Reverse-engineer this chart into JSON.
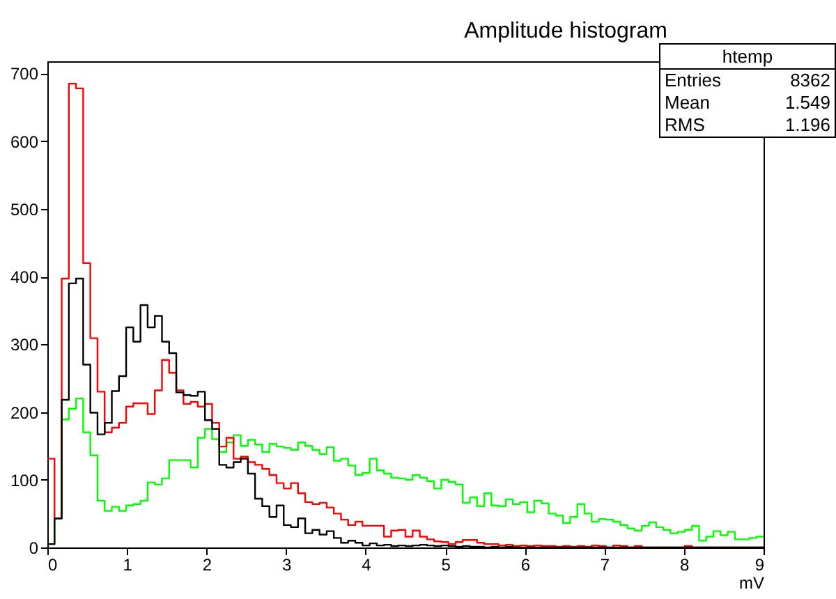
{
  "chart_data": {
    "type": "histogram",
    "title": "Amplitude histogram",
    "xlabel": "mV",
    "annotations": [
      "htemp",
      "Entries",
      "8362",
      "Mean",
      "1.549",
      "RMS",
      "1.196"
    ],
    "bins": [
      0,
      0.09,
      0.18,
      0.27,
      0.36,
      0.45,
      0.54,
      0.63,
      0.72,
      0.81,
      0.9,
      0.99,
      1.08,
      1.17,
      1.26,
      1.35,
      1.44,
      1.53,
      1.62,
      1.71,
      1.8,
      1.89,
      1.98,
      2.07,
      2.16,
      2.25,
      2.34,
      2.43,
      2.52,
      2.61,
      2.7,
      2.79,
      2.88,
      2.97,
      3.06,
      3.15,
      3.24,
      3.33,
      3.42,
      3.51,
      3.6,
      3.69,
      3.78,
      3.87,
      3.96,
      4.05,
      4.14,
      4.23,
      4.32,
      4.41,
      4.5,
      4.59,
      4.68,
      4.77,
      4.86,
      4.95,
      5.04,
      5.13,
      5.22,
      5.31,
      5.4,
      5.49,
      5.58,
      5.67,
      5.76,
      5.85,
      5.94,
      6.03,
      6.12,
      6.21,
      6.3,
      6.39,
      6.48,
      6.57,
      6.66,
      6.75,
      6.84,
      6.93,
      7.02,
      7.11,
      7.2,
      7.29,
      7.38,
      7.47,
      7.56,
      7.65,
      7.74,
      7.83,
      7.92,
      8.01,
      8.1,
      8.19,
      8.28,
      8.37,
      8.46,
      8.55,
      8.64,
      8.73,
      8.82,
      8.91,
      9
    ],
    "series": [
      {
        "color": "#00ff00",
        "values": [
          5,
          43,
          189,
          205,
          220,
          170,
          136,
          69,
          54,
          60,
          54,
          62,
          64,
          69,
          96,
          93,
          102,
          129,
          129,
          129,
          118,
          162,
          175,
          160,
          141,
          155,
          166,
          150,
          159,
          152,
          141,
          153,
          149,
          147,
          144,
          155,
          150,
          144,
          138,
          148,
          128,
          131,
          121,
          107,
          110,
          131,
          114,
          109,
          103,
          102,
          100,
          107,
          103,
          98,
          87,
          100,
          97,
          93,
          66,
          74,
          61,
          80,
          62,
          61,
          71,
          64,
          67,
          52,
          69,
          65,
          50,
          47,
          36,
          45,
          64,
          50,
          38,
          42,
          41,
          38,
          33,
          28,
          25,
          32,
          37,
          30,
          26,
          21,
          23,
          26,
          32,
          10,
          16,
          24,
          18,
          23,
          12,
          12,
          14,
          16
        ]
      },
      {
        "color": "#ff0000",
        "values": [
          131,
          43,
          397,
          685,
          678,
          420,
          309,
          230,
          170,
          177,
          184,
          208,
          213,
          213,
          197,
          232,
          277,
          258,
          232,
          212,
          215,
          208,
          212,
          184,
          149,
          162,
          131,
          134,
          126,
          122,
          116,
          107,
          95,
          87,
          95,
          80,
          67,
          64,
          66,
          59,
          50,
          41,
          33,
          38,
          32,
          32,
          32,
          16,
          25,
          26,
          16,
          25,
          16,
          12,
          9,
          8,
          5,
          8,
          11,
          11,
          7,
          5,
          5,
          3,
          4,
          2,
          3,
          2,
          3,
          2,
          2,
          1,
          2,
          1,
          2,
          1,
          3,
          2,
          0,
          3,
          2,
          0,
          2,
          0,
          0,
          0,
          0,
          0,
          0,
          2,
          0,
          0,
          0,
          0,
          0,
          0,
          0,
          0,
          0,
          0
        ]
      },
      {
        "color": "#000000",
        "values": [
          5,
          43,
          218,
          390,
          397,
          270,
          199,
          167,
          184,
          231,
          253,
          325,
          304,
          358,
          325,
          342,
          304,
          287,
          229,
          225,
          224,
          230,
          188,
          175,
          122,
          118,
          126,
          131,
          109,
          72,
          61,
          45,
          62,
          33,
          30,
          43,
          21,
          26,
          19,
          24,
          14,
          7,
          10,
          7,
          3,
          6,
          3,
          4,
          2,
          3,
          2,
          3,
          4,
          3,
          2,
          3,
          2,
          1,
          2,
          1,
          1,
          0,
          1,
          0,
          1,
          0,
          0,
          0,
          0,
          0,
          0,
          0,
          0,
          0,
          0,
          0,
          0,
          0,
          0,
          0,
          0,
          0,
          0,
          0,
          0,
          0,
          0,
          0,
          0,
          0,
          0,
          0,
          0,
          0,
          0,
          0,
          0,
          0,
          0,
          0
        ]
      }
    ],
    "xlim": [
      0,
      9
    ],
    "ylim": [
      0,
      718
    ],
    "xticks": [
      0,
      1,
      2,
      3,
      4,
      5,
      6,
      7,
      8,
      9
    ],
    "yticks": [
      0,
      100,
      200,
      300,
      400,
      500,
      600,
      700
    ],
    "grid": false,
    "legend": false
  }
}
